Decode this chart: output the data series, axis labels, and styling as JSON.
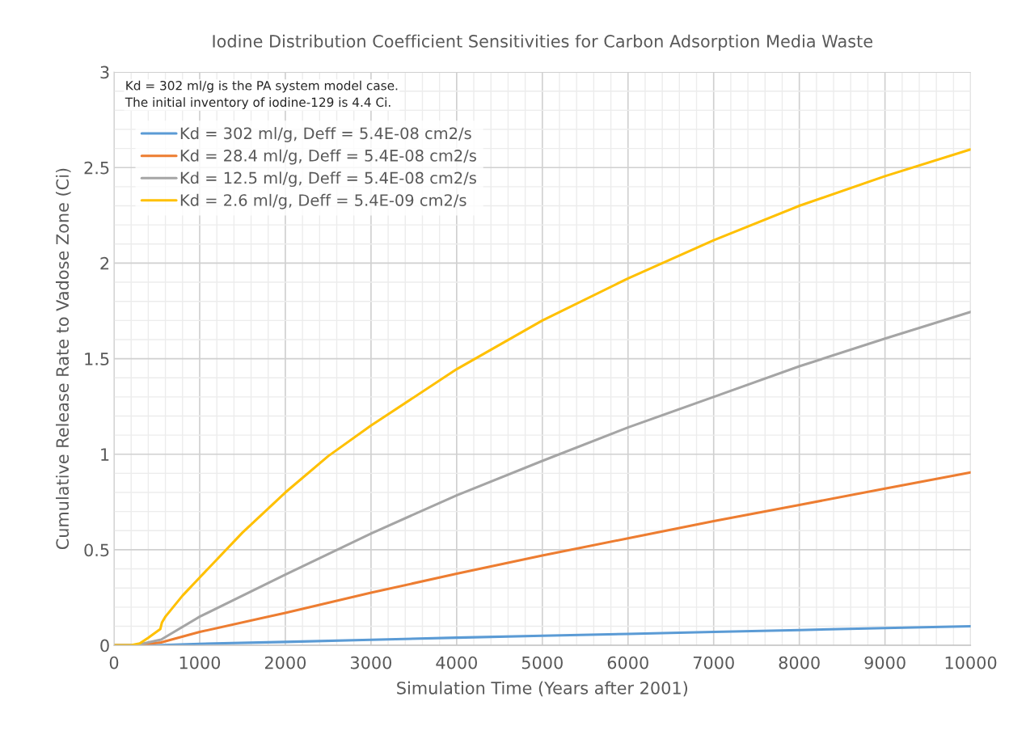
{
  "chart_data": {
    "type": "line",
    "title": "Iodine Distribution Coefficient Sensitivities for Carbon Adsorption Media Waste",
    "xlabel": "Simulation Time (Years after 2001)",
    "ylabel": "Cumulative Release Rate to Vadose Zone (Ci)",
    "annotations": [
      "Kd = 302 ml/g is the PA system model case.\nThe initial inventory of iodine-129 is 4.4 Ci."
    ],
    "xlim": [
      0,
      10000
    ],
    "xticks": [
      0,
      1000,
      2000,
      3000,
      4000,
      5000,
      6000,
      7000,
      8000,
      9000,
      10000
    ],
    "ylim": [
      0,
      3
    ],
    "yticks": [
      0,
      0.5,
      1,
      1.5,
      2,
      2.5,
      3
    ],
    "grid": true,
    "legend": "top left",
    "marker": "none",
    "line_style": "solid",
    "series": [
      {
        "name": "Kd = 302 ml/g, Deff = 5.4E-08 cm2/s",
        "color": "#5b9bd5",
        "x": [
          0,
          500,
          1000,
          2000,
          3000,
          4000,
          5000,
          6000,
          7000,
          8000,
          9000,
          10000
        ],
        "values": [
          0,
          0,
          0.008,
          0.018,
          0.029,
          0.04,
          0.05,
          0.06,
          0.07,
          0.08,
          0.09,
          0.1
        ]
      },
      {
        "name": "Kd = 28.4 ml/g, Deff = 5.4E-08 cm2/s",
        "color": "#ed7d31",
        "x": [
          0,
          250,
          550,
          1000,
          2000,
          3000,
          4000,
          5000,
          6000,
          7000,
          8000,
          9000,
          10000
        ],
        "values": [
          0,
          0,
          0.015,
          0.07,
          0.17,
          0.275,
          0.375,
          0.47,
          0.56,
          0.65,
          0.735,
          0.82,
          0.905
        ]
      },
      {
        "name": "Kd = 12.5 ml/g, Deff = 5.4E-08 cm2/s",
        "color": "#a5a5a5",
        "x": [
          0,
          250,
          550,
          1000,
          2000,
          3000,
          4000,
          5000,
          6000,
          7000,
          8000,
          9000,
          10000
        ],
        "values": [
          0,
          0,
          0.03,
          0.15,
          0.37,
          0.585,
          0.785,
          0.965,
          1.14,
          1.3,
          1.46,
          1.605,
          1.745
        ]
      },
      {
        "name": "Kd = 2.6 ml/g, Deff = 5.4E-09 cm2/s",
        "color": "#ffc000",
        "x": [
          0,
          200,
          300,
          400,
          540,
          560,
          600,
          800,
          1000,
          1500,
          2000,
          2500,
          3000,
          4000,
          5000,
          6000,
          7000,
          8000,
          9000,
          10000
        ],
        "values": [
          0,
          0,
          0.01,
          0.04,
          0.085,
          0.12,
          0.15,
          0.26,
          0.355,
          0.59,
          0.8,
          0.99,
          1.15,
          1.445,
          1.7,
          1.92,
          2.12,
          2.3,
          2.455,
          2.595
        ]
      }
    ]
  }
}
